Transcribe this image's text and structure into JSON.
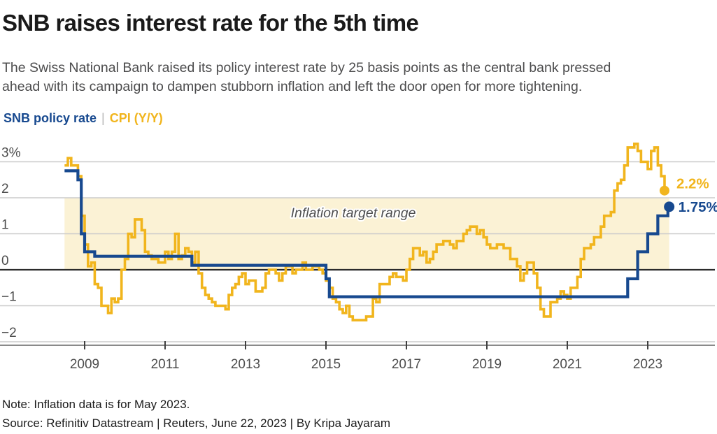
{
  "header": {
    "title": "SNB raises interest rate for the 5th time",
    "subtitle_lines": [
      "The Swiss National Bank raised its policy interest rate by 25 basis points as the central bank pressed",
      "ahead with its campaign to dampen stubborn inflation and left the door open for more tightening."
    ],
    "legend": {
      "snb_label": "SNB policy rate",
      "separator": "|",
      "cpi_label": "CPI (Y/Y)"
    }
  },
  "chart_data": {
    "type": "line",
    "title": "SNB policy rate vs CPI (Y/Y)",
    "xlabel": "",
    "ylabel": "%",
    "ylim": [
      -2.4,
      3.6
    ],
    "x_ticks": [
      "2009",
      "2011",
      "2013",
      "2015",
      "2017",
      "2019",
      "2021",
      "2023"
    ],
    "y_tick_values": [
      3,
      2,
      1,
      0,
      -1,
      -2
    ],
    "y_tick_labels": [
      "3%",
      "2",
      "1",
      "0",
      "−1",
      "−2"
    ],
    "grid": true,
    "legend_position": "top-left",
    "band": {
      "label": "Inflation target range",
      "from": 0,
      "to": 2
    },
    "series": [
      {
        "name": "SNB policy rate",
        "style": "step",
        "points": [
          [
            "2008-06",
            2.75
          ],
          [
            "2008-10",
            2.5
          ],
          [
            "2008-11",
            1.0
          ],
          [
            "2008-12",
            0.5
          ],
          [
            "2009-03",
            0.375
          ],
          [
            "2011-08",
            0.125
          ],
          [
            "2014-12",
            -0.25
          ],
          [
            "2015-01",
            -0.75
          ],
          [
            "2022-06",
            -0.25
          ],
          [
            "2022-09",
            0.5
          ],
          [
            "2022-12",
            1.0
          ],
          [
            "2023-03",
            1.5
          ],
          [
            "2023-06",
            1.75
          ]
        ],
        "end_date": "2023-06",
        "end_value": 1.75,
        "end_label": "1.75%"
      },
      {
        "name": "CPI (Y/Y)",
        "style": "step",
        "start": "2008-06",
        "monthly_values": [
          2.9,
          3.1,
          2.9,
          2.9,
          2.6,
          1.5,
          0.7,
          0.1,
          0.2,
          -0.4,
          -0.5,
          -1.0,
          -1.0,
          -1.2,
          -0.8,
          -0.9,
          -0.8,
          0.0,
          0.3,
          1.0,
          0.9,
          1.4,
          1.4,
          1.1,
          0.5,
          0.4,
          0.3,
          0.3,
          0.2,
          0.2,
          0.5,
          0.3,
          0.5,
          1.0,
          0.3,
          0.4,
          0.6,
          0.5,
          0.2,
          0.5,
          -0.1,
          -0.5,
          -0.7,
          -0.8,
          -0.9,
          -1.0,
          -1.0,
          -1.0,
          -1.1,
          -0.7,
          -0.5,
          -0.4,
          -0.2,
          -0.1,
          -0.4,
          -0.3,
          -0.3,
          -0.6,
          -0.6,
          -0.5,
          -0.1,
          0.0,
          0.0,
          -0.1,
          -0.3,
          -0.1,
          0.1,
          0.1,
          -0.1,
          0.0,
          0.0,
          0.2,
          0.0,
          0.0,
          0.1,
          0.1,
          0.0,
          -0.1,
          -0.3,
          -0.5,
          -0.8,
          -0.9,
          -1.1,
          -1.2,
          -1.0,
          -1.3,
          -1.4,
          -1.4,
          -1.4,
          -1.4,
          -1.3,
          -1.3,
          -0.8,
          -0.9,
          -0.4,
          -0.4,
          -0.4,
          -0.2,
          -0.1,
          -0.2,
          -0.2,
          -0.3,
          0.0,
          0.3,
          0.6,
          0.6,
          0.4,
          0.5,
          0.2,
          0.3,
          0.5,
          0.7,
          0.7,
          0.8,
          0.8,
          0.7,
          0.6,
          0.8,
          0.8,
          1.0,
          1.1,
          1.2,
          1.2,
          1.0,
          1.1,
          0.9,
          0.7,
          0.6,
          0.6,
          0.7,
          0.7,
          0.6,
          0.6,
          0.3,
          0.3,
          0.1,
          -0.3,
          -0.1,
          0.2,
          0.2,
          -0.1,
          -0.5,
          -1.1,
          -1.3,
          -1.3,
          -0.9,
          -0.9,
          -0.8,
          -0.6,
          -0.7,
          -0.8,
          -0.5,
          -0.5,
          -0.2,
          0.3,
          0.6,
          0.6,
          0.7,
          0.9,
          0.9,
          1.2,
          1.5,
          1.5,
          1.6,
          2.2,
          2.4,
          2.5,
          2.9,
          3.4,
          3.4,
          3.5,
          3.3,
          3.0,
          3.0,
          2.8,
          3.3,
          3.4,
          2.9,
          2.6,
          2.2
        ],
        "end_value": 2.2,
        "end_label": "2.2%"
      }
    ]
  },
  "footer": {
    "note": "Note: Inflation data is for May 2023.",
    "source": "Source: Refinitiv Datastream | Reuters, June 22, 2023 | By Kripa Jayaram"
  },
  "colors": {
    "snb_blue": "#17498F",
    "cpi_yellow": "#F1B51D",
    "band": "#FBF2D5",
    "grid": "#CBCBCB",
    "zero_line": "#2B2B2B",
    "axis": "#8A8A8A",
    "tick": "#3F3F3F",
    "label_gray": "#4D4D4D",
    "band_label": "#4F4F50",
    "title": "#1A1A1A",
    "subtitle": "#4C4C4D"
  }
}
